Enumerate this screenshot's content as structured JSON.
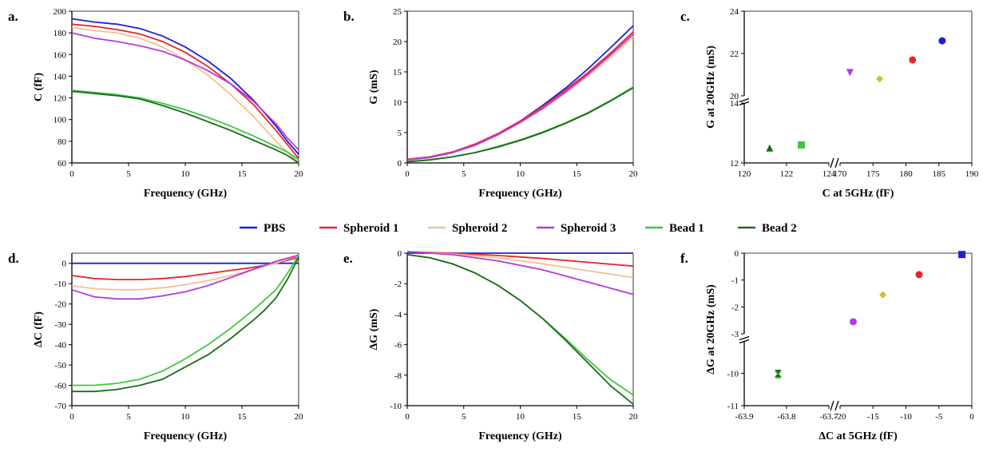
{
  "legend": [
    {
      "name": "PBS",
      "color": "#1f1fd6"
    },
    {
      "name": "Spheroid 1",
      "color": "#e8242a"
    },
    {
      "name": "Spheroid 2",
      "color": "#f3c08f"
    },
    {
      "name": "Spheroid 3",
      "color": "#b23be0"
    },
    {
      "name": "Bead 1",
      "color": "#3ec83e"
    },
    {
      "name": "Bead 2",
      "color": "#1b6b1b"
    }
  ],
  "chart_data": [
    {
      "panel": "a.",
      "type": "line",
      "xlabel": "Frequency (GHz)",
      "ylabel": "C (fF)",
      "xlim": [
        0,
        20
      ],
      "ylim": [
        60,
        200
      ],
      "xticks": [
        0,
        5,
        10,
        15,
        20
      ],
      "yticks": [
        60,
        80,
        100,
        120,
        140,
        160,
        180,
        200
      ],
      "series": [
        {
          "name": "PBS",
          "color": "#1f1fd6",
          "x": [
            0,
            2,
            4,
            6,
            8,
            10,
            12,
            14,
            16,
            18,
            19,
            20
          ],
          "y": [
            193,
            190,
            188,
            184,
            177,
            167,
            154,
            138,
            118,
            94,
            80,
            68
          ]
        },
        {
          "name": "Spheroid 1",
          "color": "#e8242a",
          "x": [
            0,
            2,
            4,
            6,
            8,
            10,
            12,
            14,
            16,
            18,
            19,
            20
          ],
          "y": [
            188,
            186,
            183,
            179,
            172,
            162,
            149,
            133,
            114,
            90,
            77,
            64
          ]
        },
        {
          "name": "Spheroid 2",
          "color": "#f3c08f",
          "x": [
            0,
            2,
            4,
            6,
            8,
            10,
            12,
            14,
            16,
            18,
            19,
            20
          ],
          "y": [
            185,
            182,
            180,
            175,
            167,
            155,
            141,
            123,
            103,
            80,
            70,
            60
          ]
        },
        {
          "name": "Spheroid 3",
          "color": "#b23be0",
          "x": [
            0,
            2,
            4,
            6,
            8,
            10,
            12,
            14,
            16,
            18,
            19,
            20
          ],
          "y": [
            180,
            175,
            172,
            168,
            163,
            155,
            145,
            133,
            117,
            96,
            83,
            72
          ]
        },
        {
          "name": "Bead 1",
          "color": "#3ec83e",
          "x": [
            0,
            2,
            4,
            6,
            8,
            10,
            12,
            14,
            16,
            18,
            19,
            20
          ],
          "y": [
            127,
            125,
            123,
            120,
            115,
            109,
            102,
            94,
            85,
            75,
            70,
            63
          ]
        },
        {
          "name": "Bead 2",
          "color": "#1b6b1b",
          "x": [
            0,
            2,
            4,
            6,
            8,
            10,
            12,
            14,
            16,
            18,
            19,
            20
          ],
          "y": [
            126,
            124,
            122,
            119,
            113,
            106,
            98,
            90,
            81,
            72,
            67,
            60
          ]
        }
      ]
    },
    {
      "panel": "b.",
      "type": "line",
      "xlabel": "Frequency (GHz)",
      "ylabel": "G (mS)",
      "xlim": [
        0,
        20
      ],
      "ylim": [
        0,
        25
      ],
      "xticks": [
        0,
        5,
        10,
        15,
        20
      ],
      "yticks": [
        0,
        5,
        10,
        15,
        20,
        25
      ],
      "series": [
        {
          "name": "PBS",
          "color": "#1f1fd6",
          "x": [
            0,
            2,
            4,
            6,
            8,
            10,
            12,
            14,
            16,
            18,
            20
          ],
          "y": [
            0.5,
            0.9,
            1.7,
            3.0,
            4.7,
            6.9,
            9.5,
            12.3,
            15.5,
            19.0,
            22.6
          ]
        },
        {
          "name": "Spheroid 1",
          "color": "#e8242a",
          "x": [
            0,
            2,
            4,
            6,
            8,
            10,
            12,
            14,
            16,
            18,
            20
          ],
          "y": [
            0.6,
            1.0,
            1.8,
            3.1,
            4.8,
            6.9,
            9.3,
            12.0,
            14.9,
            18.1,
            21.6
          ]
        },
        {
          "name": "Spheroid 2",
          "color": "#f3c08f",
          "x": [
            0,
            2,
            4,
            6,
            8,
            10,
            12,
            14,
            16,
            18,
            20
          ],
          "y": [
            0.5,
            0.9,
            1.7,
            2.9,
            4.6,
            6.6,
            8.9,
            11.5,
            14.3,
            17.4,
            20.8
          ]
        },
        {
          "name": "Spheroid 3",
          "color": "#b23be0",
          "x": [
            0,
            2,
            4,
            6,
            8,
            10,
            12,
            14,
            16,
            18,
            20
          ],
          "y": [
            0.5,
            0.9,
            1.7,
            2.9,
            4.6,
            6.7,
            9.0,
            11.7,
            14.6,
            17.8,
            21.2
          ]
        },
        {
          "name": "Bead 1",
          "color": "#3ec83e",
          "x": [
            0,
            2,
            4,
            6,
            8,
            10,
            12,
            14,
            16,
            18,
            20
          ],
          "y": [
            0.2,
            0.5,
            1.0,
            1.7,
            2.7,
            3.8,
            5.1,
            6.6,
            8.3,
            10.3,
            12.5
          ]
        },
        {
          "name": "Bead 2",
          "color": "#1b6b1b",
          "x": [
            0,
            2,
            4,
            6,
            8,
            10,
            12,
            14,
            16,
            18,
            20
          ],
          "y": [
            0.2,
            0.5,
            1.0,
            1.7,
            2.6,
            3.7,
            5.0,
            6.5,
            8.2,
            10.2,
            12.4
          ]
        }
      ]
    },
    {
      "panel": "c.",
      "type": "scatter",
      "xlabel": "C at 5GHz (fF)",
      "ylabel": "G at 20GHz (mS)",
      "xsegments": [
        {
          "range": [
            120,
            124
          ],
          "ticks": [
            120,
            122,
            124
          ]
        },
        {
          "range": [
            170,
            190
          ],
          "ticks": [
            170,
            175,
            180,
            185,
            190
          ]
        }
      ],
      "ysegments": [
        {
          "range": [
            12,
            14
          ],
          "ticks": [
            12,
            14
          ]
        },
        {
          "range": [
            20,
            24
          ],
          "ticks": [
            20,
            22,
            24
          ]
        }
      ],
      "points": [
        {
          "name": "PBS",
          "color": "#1f1fd6",
          "marker": "circle",
          "x": 185.5,
          "y": 22.6
        },
        {
          "name": "Spheroid 1",
          "color": "#e8242a",
          "marker": "circle",
          "x": 181.0,
          "y": 21.7
        },
        {
          "name": "Spheroid 2",
          "color": "#c9c12a",
          "marker": "diamond",
          "x": 176.0,
          "y": 20.8
        },
        {
          "name": "Spheroid 3",
          "color": "#b23be0",
          "marker": "triangle-down",
          "x": 171.5,
          "y": 21.1
        },
        {
          "name": "Bead 1",
          "color": "#3ec83e",
          "marker": "square",
          "x": 122.7,
          "y": 12.6
        },
        {
          "name": "Bead 2",
          "color": "#1b6b1b",
          "marker": "triangle-up",
          "x": 121.2,
          "y": 12.5
        }
      ]
    },
    {
      "panel": "d.",
      "type": "line",
      "xlabel": "Frequency (GHz)",
      "ylabel": "ΔC (fF)",
      "xlim": [
        0,
        20
      ],
      "ylim": [
        -70,
        5
      ],
      "xticks": [
        0,
        5,
        10,
        15,
        20
      ],
      "yticks": [
        -70,
        -60,
        -50,
        -40,
        -30,
        -20,
        -10,
        0
      ],
      "series": [
        {
          "name": "PBS",
          "color": "#1f1fd6",
          "x": [
            0,
            20
          ],
          "y": [
            0,
            0
          ]
        },
        {
          "name": "Spheroid 1",
          "color": "#e8242a",
          "x": [
            0,
            2,
            4,
            6,
            8,
            10,
            12,
            14,
            16,
            18,
            20
          ],
          "y": [
            -6,
            -7.5,
            -8,
            -8,
            -7.5,
            -6.5,
            -5,
            -3.5,
            -2,
            0,
            3
          ]
        },
        {
          "name": "Spheroid 2",
          "color": "#f3c08f",
          "x": [
            0,
            2,
            4,
            6,
            8,
            10,
            12,
            14,
            16,
            18,
            20
          ],
          "y": [
            -11,
            -12.5,
            -13,
            -13,
            -12,
            -10.5,
            -8.5,
            -6,
            -3,
            0,
            4
          ]
        },
        {
          "name": "Spheroid 3",
          "color": "#b23be0",
          "x": [
            0,
            2,
            4,
            6,
            8,
            10,
            12,
            14,
            16,
            18,
            20
          ],
          "y": [
            -13,
            -16.5,
            -17.5,
            -17.5,
            -16,
            -14,
            -11,
            -7,
            -3,
            1,
            4
          ]
        },
        {
          "name": "Bead 1",
          "color": "#3ec83e",
          "x": [
            0,
            2,
            4,
            6,
            8,
            10,
            12,
            14,
            16,
            17,
            18,
            19,
            20
          ],
          "y": [
            -60,
            -60,
            -59,
            -57,
            -53,
            -47,
            -40,
            -32,
            -23,
            -18,
            -13,
            -5,
            4
          ]
        },
        {
          "name": "Bead 2",
          "color": "#1b6b1b",
          "x": [
            0,
            2,
            4,
            6,
            8,
            10,
            12,
            14,
            16,
            17,
            18,
            19,
            20
          ],
          "y": [
            -63,
            -63,
            -62,
            -60,
            -57,
            -51,
            -45,
            -37,
            -28,
            -23,
            -17,
            -8,
            3
          ]
        }
      ]
    },
    {
      "panel": "e.",
      "type": "line",
      "xlabel": "Frequency (GHz)",
      "ylabel": "ΔG (mS)",
      "xlim": [
        0,
        20
      ],
      "ylim": [
        -10,
        0
      ],
      "xticks": [
        0,
        5,
        10,
        15,
        20
      ],
      "yticks": [
        -10,
        -8,
        -6,
        -4,
        -2,
        0
      ],
      "series": [
        {
          "name": "PBS",
          "color": "#1f1fd6",
          "x": [
            0,
            20
          ],
          "y": [
            0,
            0
          ]
        },
        {
          "name": "Spheroid 1",
          "color": "#e8242a",
          "x": [
            0,
            4,
            8,
            12,
            16,
            20
          ],
          "y": [
            0.1,
            0.0,
            -0.15,
            -0.35,
            -0.6,
            -0.85
          ]
        },
        {
          "name": "Spheroid 2",
          "color": "#f3c08f",
          "x": [
            0,
            4,
            8,
            12,
            16,
            20
          ],
          "y": [
            0.1,
            -0.05,
            -0.3,
            -0.7,
            -1.15,
            -1.6
          ]
        },
        {
          "name": "Spheroid 3",
          "color": "#b23be0",
          "x": [
            0,
            4,
            8,
            12,
            16,
            20
          ],
          "y": [
            0.1,
            -0.1,
            -0.5,
            -1.1,
            -1.9,
            -2.7
          ]
        },
        {
          "name": "Bead 1",
          "color": "#3ec83e",
          "x": [
            0,
            2,
            4,
            6,
            8,
            10,
            12,
            14,
            16,
            18,
            20
          ],
          "y": [
            -0.1,
            -0.3,
            -0.7,
            -1.3,
            -2.1,
            -3.1,
            -4.3,
            -5.6,
            -7.0,
            -8.3,
            -9.3
          ]
        },
        {
          "name": "Bead 2",
          "color": "#1b6b1b",
          "x": [
            0,
            2,
            4,
            6,
            8,
            10,
            12,
            14,
            16,
            18,
            20
          ],
          "y": [
            -0.1,
            -0.3,
            -0.7,
            -1.3,
            -2.1,
            -3.1,
            -4.3,
            -5.7,
            -7.2,
            -8.7,
            -9.9
          ]
        }
      ]
    },
    {
      "panel": "f.",
      "type": "scatter",
      "xlabel": "ΔC at 5GHz (fF)",
      "ylabel": "ΔG at 20GHz (mS)",
      "xsegments": [
        {
          "range": [
            -63.9,
            -63.7
          ],
          "ticks": [
            -63.9,
            -63.8,
            -63.7
          ]
        },
        {
          "range": [
            -20,
            0
          ],
          "ticks": [
            -20,
            -15,
            -10,
            -5,
            0
          ]
        }
      ],
      "ysegments": [
        {
          "range": [
            -11,
            -9
          ],
          "ticks": [
            -11,
            -10
          ]
        },
        {
          "range": [
            -3,
            0
          ],
          "ticks": [
            -3,
            -2,
            -1,
            0
          ]
        }
      ],
      "points": [
        {
          "name": "PBS",
          "color": "#1f1fd6",
          "marker": "square",
          "x": -1.5,
          "y": -0.05
        },
        {
          "name": "Spheroid 1",
          "color": "#e8242a",
          "marker": "circle",
          "x": -8,
          "y": -0.8
        },
        {
          "name": "Spheroid 2",
          "color": "#c9c12a",
          "marker": "diamond",
          "x": -13.5,
          "y": -1.55
        },
        {
          "name": "Spheroid 3",
          "color": "#b23be0",
          "marker": "circle",
          "x": -18,
          "y": -2.55
        },
        {
          "name": "Bead 1",
          "color": "#3ec83e",
          "marker": "bowtie",
          "x": -63.82,
          "y": -10.05
        },
        {
          "name": "Bead 2",
          "color": "#1b6b1b",
          "marker": "bowtie",
          "x": -63.82,
          "y": -10.0
        }
      ]
    }
  ]
}
